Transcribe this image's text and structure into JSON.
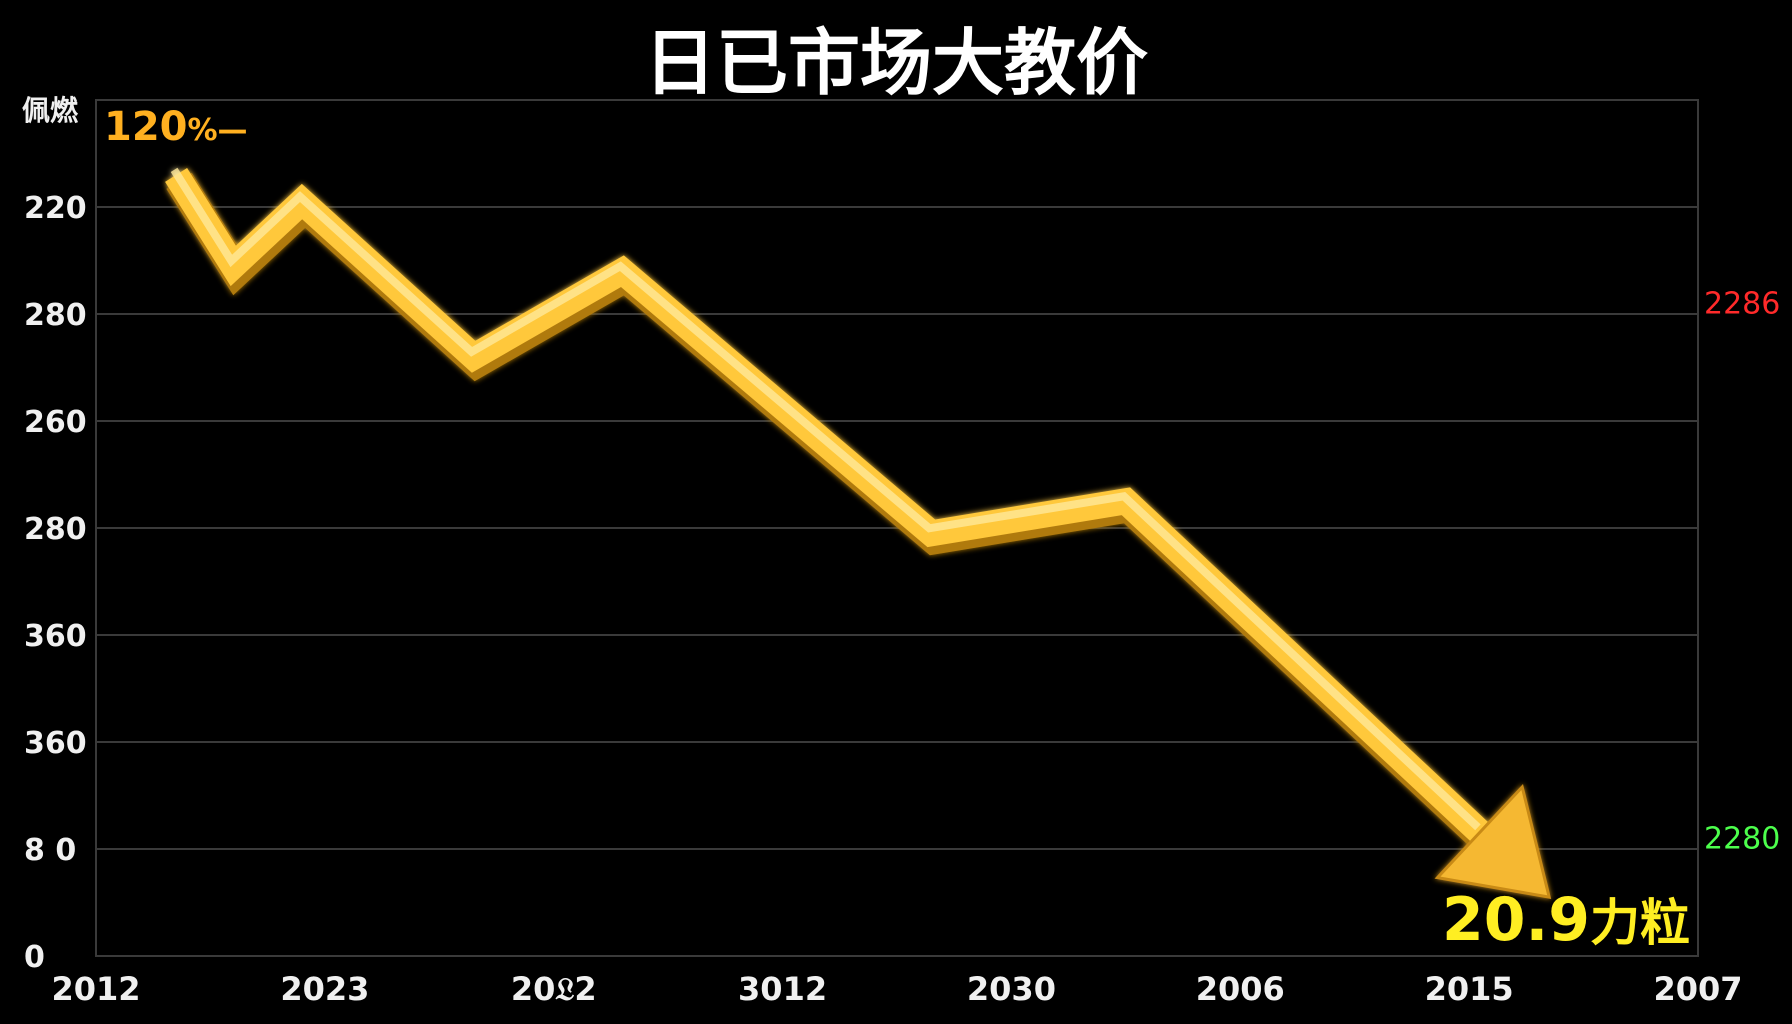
{
  "chart_data": {
    "type": "line",
    "title": "日已市场大教价",
    "y_axis_title": "佩燃",
    "x_tick_labels": [
      "2012",
      "2023",
      "20𝔏2",
      "3012",
      "2030",
      "2006",
      "2015",
      "2007"
    ],
    "y_tick_labels": [
      "0",
      "8 0",
      "360",
      "360",
      "280",
      "260",
      "280",
      "220"
    ],
    "right_labels": [
      {
        "text": "2286",
        "color": "#ff2a2a",
        "level": 6.1
      },
      {
        "text": "2280",
        "color": "#4cff4c",
        "level": 1.1
      }
    ],
    "series": [
      {
        "color": "#ffc83a",
        "x": [
          0.35,
          0.6,
          0.9,
          1.65,
          2.3,
          3.65,
          4.5,
          6.35
        ],
        "y": [
          7.3,
          6.45,
          7.05,
          5.6,
          6.4,
          3.95,
          4.25,
          0.55
        ]
      }
    ],
    "start_annotation": {
      "text": "120",
      "suffix": "%—",
      "color": "#ffb020"
    },
    "end_annotation": {
      "text": "20.9",
      "suffix": "力粒",
      "color": "#ffee22"
    },
    "xlim": [
      0,
      7
    ],
    "ylim": [
      0,
      8
    ],
    "grid": true
  }
}
